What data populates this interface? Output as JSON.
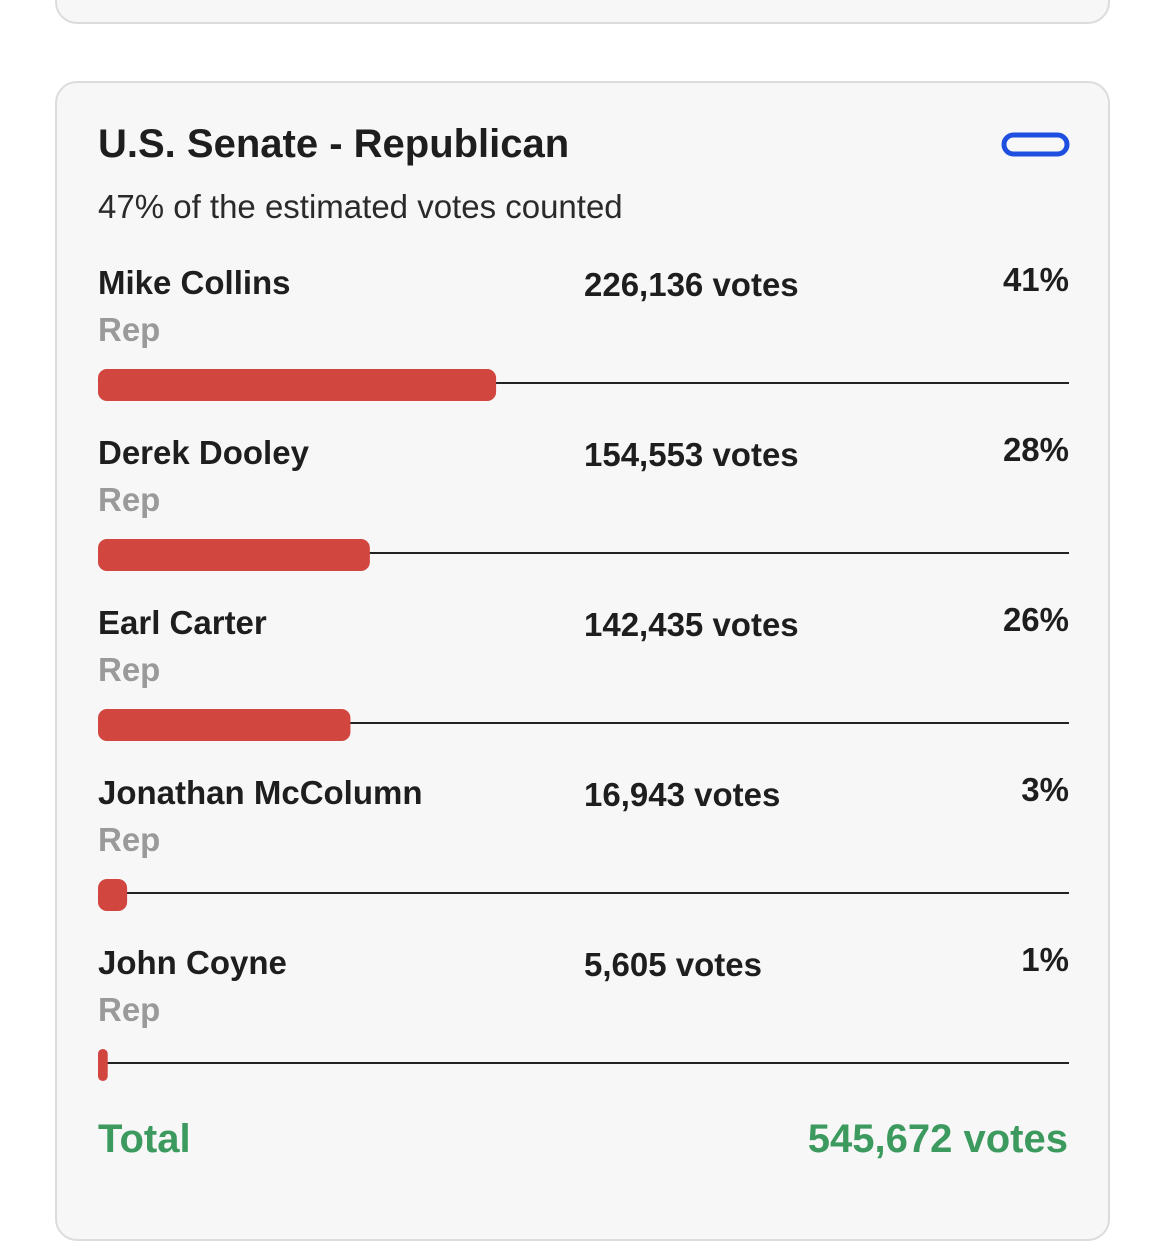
{
  "header": {
    "title": "U.S. Senate - Republican",
    "subtitle": "47% of the estimated votes counted"
  },
  "candidates": [
    {
      "name": "Mike Collins",
      "party": "Rep",
      "votes": "226,136 votes",
      "percent": 41,
      "percent_label": "41%"
    },
    {
      "name": "Derek Dooley",
      "party": "Rep",
      "votes": "154,553 votes",
      "percent": 28,
      "percent_label": "28%"
    },
    {
      "name": "Earl Carter",
      "party": "Rep",
      "votes": "142,435 votes",
      "percent": 26,
      "percent_label": "26%"
    },
    {
      "name": "Jonathan McColumn",
      "party": "Rep",
      "votes": "16,943 votes",
      "percent": 3,
      "percent_label": "3%"
    },
    {
      "name": "John Coyne",
      "party": "Rep",
      "votes": "5,605 votes",
      "percent": 1,
      "percent_label": "1%"
    }
  ],
  "total": {
    "label": "Total",
    "votes": "545,672 votes"
  }
}
